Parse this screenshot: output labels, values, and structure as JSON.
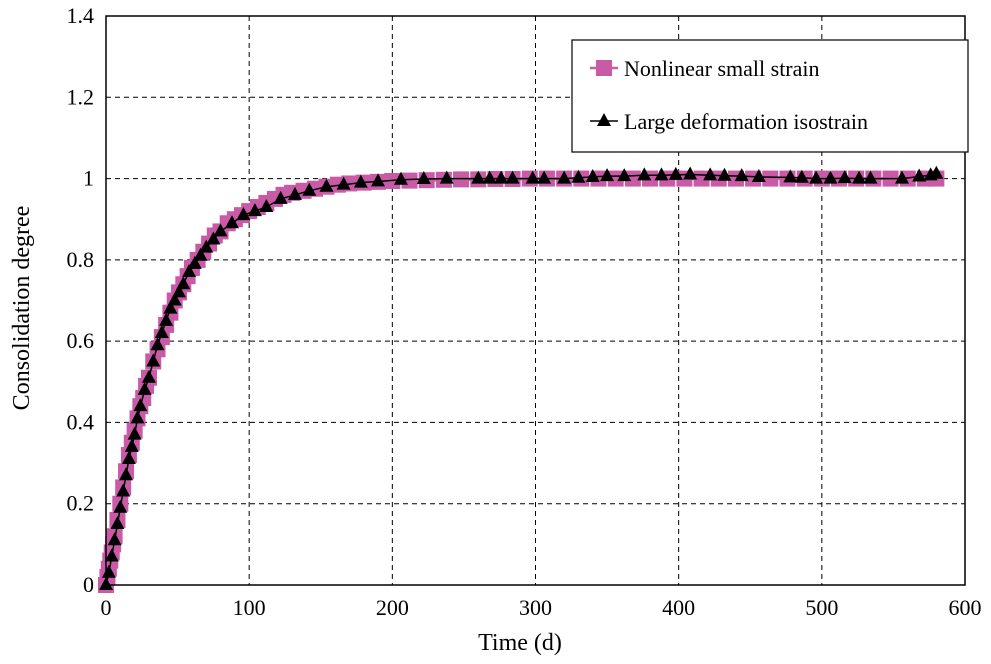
{
  "chart_data": {
    "type": "line",
    "title": "",
    "xlabel": "Time (d)",
    "ylabel": "Consolidation degree",
    "xlim": [
      0,
      600
    ],
    "ylim": [
      0,
      1.4
    ],
    "xticks": [
      0,
      100,
      200,
      300,
      400,
      500,
      600
    ],
    "yticks": [
      0,
      0.2,
      0.4,
      0.6,
      0.8,
      1,
      1.2,
      1.4
    ],
    "xtick_labels": [
      "0",
      "100",
      "200",
      "300",
      "400",
      "500",
      "600"
    ],
    "ytick_labels": [
      "0",
      "0.2",
      "0.4",
      "0.6",
      "0.8",
      "1",
      "1.2",
      "1.4"
    ],
    "grid": true,
    "legend_position": "top-right",
    "series": [
      {
        "name": "Nonlinear small strain",
        "color": "#c85aa6",
        "marker": "square",
        "x": [
          0,
          1,
          2,
          3,
          4,
          5,
          6,
          8,
          10,
          12,
          14,
          16,
          18,
          20,
          22,
          24,
          26,
          28,
          30,
          33,
          36,
          39,
          42,
          45,
          48,
          51,
          54,
          57,
          60,
          64,
          68,
          72,
          76,
          80,
          85,
          90,
          95,
          100,
          106,
          112,
          118,
          124,
          130,
          138,
          146,
          154,
          162,
          170,
          180,
          190,
          200,
          212,
          224,
          236,
          248,
          260,
          272,
          284,
          296,
          308,
          320,
          332,
          344,
          356,
          368,
          380,
          392,
          404,
          416,
          428,
          440,
          452,
          464,
          476,
          488,
          500,
          512,
          524,
          536,
          548,
          560,
          572,
          580
        ],
        "y": [
          0,
          0.02,
          0.04,
          0.06,
          0.08,
          0.1,
          0.12,
          0.16,
          0.2,
          0.24,
          0.28,
          0.32,
          0.35,
          0.38,
          0.41,
          0.44,
          0.46,
          0.49,
          0.51,
          0.55,
          0.58,
          0.61,
          0.64,
          0.67,
          0.7,
          0.72,
          0.74,
          0.76,
          0.78,
          0.8,
          0.82,
          0.84,
          0.86,
          0.87,
          0.89,
          0.9,
          0.91,
          0.92,
          0.93,
          0.94,
          0.95,
          0.96,
          0.965,
          0.97,
          0.975,
          0.98,
          0.985,
          0.988,
          0.99,
          0.992,
          0.994,
          0.995,
          0.996,
          0.997,
          0.998,
          0.998,
          0.999,
          0.999,
          1.0,
          1.0,
          1.0,
          1.0,
          1.0,
          1.0,
          1.0,
          1.0,
          1.0,
          1.0,
          1.0,
          1.0,
          1.0,
          1.0,
          1.0,
          1.0,
          1.0,
          1.0,
          1.0,
          1.0,
          1.0,
          1.0,
          1.0,
          1.0,
          1.0
        ]
      },
      {
        "name": "Large deformation isostrain",
        "color": "#000000",
        "marker": "triangle",
        "x": [
          0,
          2,
          4,
          6,
          8,
          10,
          12,
          14,
          16,
          18,
          20,
          22,
          24,
          27,
          30,
          33,
          36,
          39,
          42,
          45,
          48,
          51,
          54,
          58,
          62,
          66,
          70,
          75,
          80,
          88,
          96,
          104,
          112,
          122,
          132,
          142,
          154,
          166,
          178,
          190,
          206,
          222,
          238,
          260,
          268,
          276,
          284,
          298,
          306,
          320,
          330,
          340,
          350,
          362,
          376,
          388,
          398,
          408,
          422,
          432,
          444,
          456,
          478,
          486,
          496,
          506,
          516,
          526,
          534,
          556,
          568,
          576,
          580
        ],
        "y": [
          0,
          0.03,
          0.07,
          0.11,
          0.15,
          0.19,
          0.23,
          0.27,
          0.31,
          0.34,
          0.37,
          0.41,
          0.44,
          0.48,
          0.51,
          0.55,
          0.59,
          0.62,
          0.65,
          0.68,
          0.7,
          0.72,
          0.74,
          0.77,
          0.79,
          0.81,
          0.83,
          0.85,
          0.87,
          0.89,
          0.91,
          0.92,
          0.93,
          0.95,
          0.96,
          0.97,
          0.98,
          0.985,
          0.99,
          0.993,
          0.997,
          0.999,
          1.0,
          1.0,
          1.0,
          1.0,
          1.0,
          1.0,
          1.0,
          1.0,
          1.002,
          1.004,
          1.006,
          1.006,
          1.008,
          1.008,
          1.009,
          1.01,
          1.008,
          1.007,
          1.006,
          1.004,
          1.003,
          1.002,
          1.0,
          1.0,
          1.001,
          1.0,
          1.0,
          1.0,
          1.005,
          1.008,
          1.012
        ]
      }
    ]
  }
}
